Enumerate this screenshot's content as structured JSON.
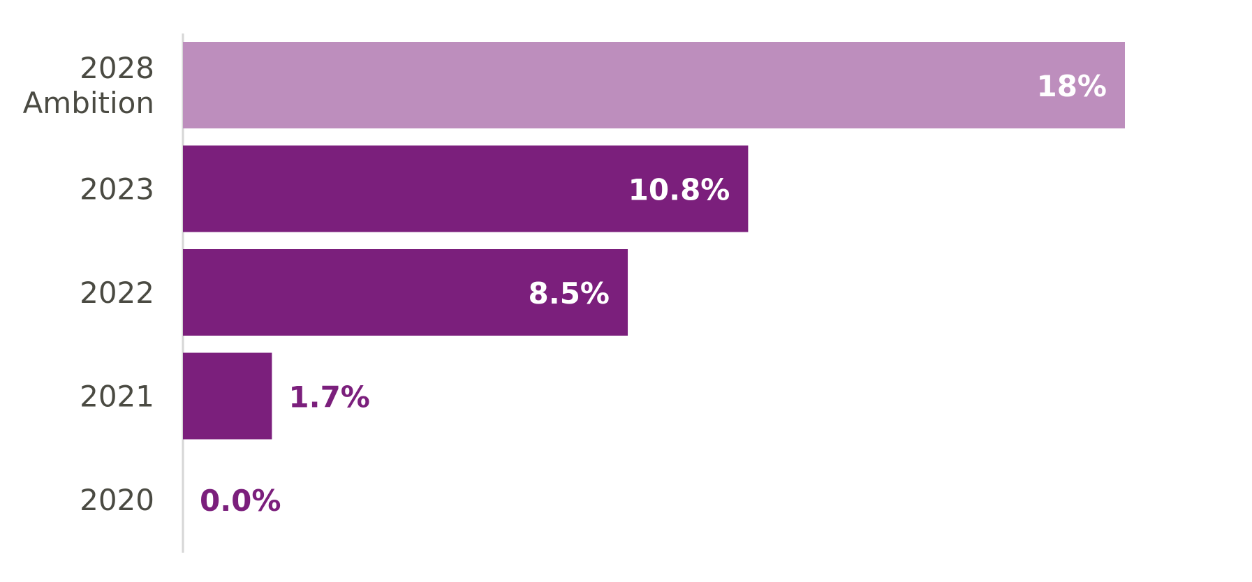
{
  "chart_data": {
    "type": "bar",
    "orientation": "horizontal",
    "categories": [
      [
        "2028",
        "Ambition"
      ],
      [
        "2023"
      ],
      [
        "2022"
      ],
      [
        "2021"
      ],
      [
        "2020"
      ]
    ],
    "values": [
      18.0,
      10.8,
      8.5,
      1.7,
      0.0
    ],
    "data_labels": [
      "18%",
      "10.8%",
      "8.5%",
      "1.7%",
      "0.0%"
    ],
    "highlight": [
      true,
      false,
      false,
      false,
      false
    ],
    "xlim": [
      0,
      18
    ],
    "grid": false,
    "legend": "none",
    "title": "",
    "xlabel": "",
    "ylabel": ""
  },
  "colors": {
    "bar": "#7b1f7c",
    "bar_highlight": "#bd8ebd",
    "label_inside": "#ffffff",
    "label_outside": "#7b1f7c",
    "axis": "#d6d6d6"
  }
}
